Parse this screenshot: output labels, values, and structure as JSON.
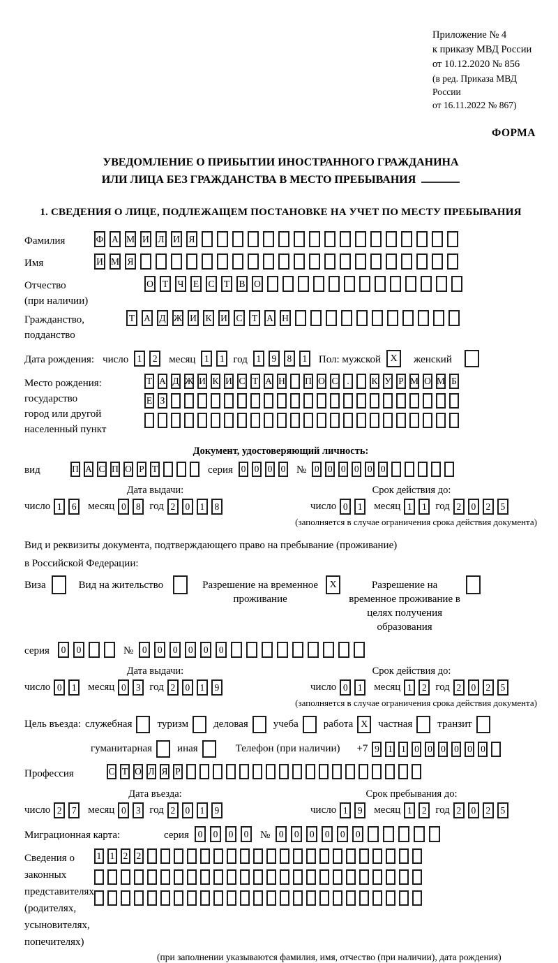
{
  "header": {
    "lines": [
      "Приложение № 4",
      "к приказу МВД России",
      "от 10.12.2020 № 856"
    ],
    "sub_lines": [
      "(в ред. Приказа МВД России",
      "от 16.11.2022 № 867)"
    ],
    "form_label": "ФОРМА"
  },
  "title": {
    "line1": "УВЕДОМЛЕНИЕ О ПРИБЫТИИ ИНОСТРАННОГО ГРАЖДАНИНА",
    "line2": "ИЛИ ЛИЦА БЕЗ ГРАЖДАНСТВА В МЕСТО ПРЕБЫВАНИЯ"
  },
  "section1_heading": "1. СВЕДЕНИЯ О ЛИЦЕ, ПОДЛЕЖАЩЕМ ПОСТАНОВКЕ НА УЧЕТ ПО МЕСТУ ПРЕБЫВАНИЯ",
  "date_words": {
    "day": "число",
    "month": "месяц",
    "year": "год"
  },
  "surname": {
    "label": "Фамилия",
    "value": "ФАМИЛИЯ",
    "cells": 24
  },
  "firstname": {
    "label": "Имя",
    "value": "ИМЯ",
    "cells": 24
  },
  "patronymic": {
    "label1": "Отчество",
    "label2": "(при наличии)",
    "value": "ОТЧЕСТВО",
    "cells": 21
  },
  "citizenship": {
    "label1": "Гражданство,",
    "label2": "подданство",
    "value": "ТАДЖИКИСТАН",
    "cells": 22
  },
  "birth_date": {
    "label": "Дата рождения:",
    "day": "12",
    "month": "11",
    "year": "1981",
    "sex_label": "Пол: мужской",
    "male": {
      "checked": true
    },
    "female_label": "женский",
    "female": {
      "checked": false
    }
  },
  "birth_place": {
    "labels": [
      "Место рождения:",
      "государство",
      "город или другой",
      "населенный пункт"
    ],
    "row1": {
      "value": "ТАДЖИКИСТАН ПОС. КУРМОМБ",
      "cells": 24
    },
    "row2": {
      "value": "ЕЗ",
      "cells": 24
    },
    "row3": {
      "value": "",
      "cells": 24
    }
  },
  "identity_doc": {
    "heading": "Документ, удостоверяющий личность:",
    "kind_label": "вид",
    "kind": {
      "value": "ПАСПОРТ",
      "cells": 10
    },
    "series_label": "серия",
    "series": {
      "value": "0000",
      "cells": 4
    },
    "number_label": "№",
    "number": {
      "value": "000000",
      "cells": 11
    },
    "issue": {
      "heading": "Дата выдачи:",
      "day": "16",
      "month": "08",
      "year": "2018"
    },
    "expiry": {
      "heading": "Срок действия до:",
      "day": "01",
      "month": "11",
      "year": "2025"
    },
    "note": "(заполняется в случае ограничения срока действия документа)"
  },
  "residence_doc": {
    "intro1": "Вид и реквизиты документа, подтверждающего право на пребывание (проживание)",
    "intro2": "в Российской Федерации:",
    "options": [
      {
        "label": "Виза",
        "checked": false
      },
      {
        "label": "Вид на жительство",
        "checked": false
      },
      {
        "label": "Разрешение на временное проживание",
        "checked": true
      },
      {
        "label": "Разрешение на временное проживание в целях получения образования",
        "checked": false
      }
    ],
    "series_label": "серия",
    "series": {
      "value": "00",
      "cells": 4
    },
    "number_label": "№",
    "number": {
      "value": "000000",
      "cells": 15
    },
    "issue": {
      "heading": "Дата выдачи:",
      "day": "01",
      "month": "03",
      "year": "2019"
    },
    "expiry": {
      "heading": "Срок действия до:",
      "day": "01",
      "month": "12",
      "year": "2025"
    },
    "note": "(заполняется в случае ограничения срока действия документа)"
  },
  "visit_purpose": {
    "label": "Цель въезда:",
    "options_row1": [
      {
        "label": "служебная",
        "checked": false
      },
      {
        "label": "туризм",
        "checked": false
      },
      {
        "label": "деловая",
        "checked": false
      },
      {
        "label": "учеба",
        "checked": false
      },
      {
        "label": "работа",
        "checked": true
      },
      {
        "label": "частная",
        "checked": false
      },
      {
        "label": "транзит",
        "checked": false
      }
    ],
    "options_row2": [
      {
        "label": "гуманитарная",
        "checked": false
      },
      {
        "label": "иная",
        "checked": false
      }
    ],
    "phone_label": "Телефон (при наличии)",
    "phone_prefix": "+7",
    "phone": {
      "value": "911000000",
      "cells": 10
    }
  },
  "profession": {
    "label": "Профессия",
    "value": "СТОЛЯР",
    "cells": 24
  },
  "entry_dates": {
    "issue": {
      "heading": "Дата въезда:",
      "day": "27",
      "month": "03",
      "year": "2019"
    },
    "expiry": {
      "heading": "Срок пребывания до:",
      "day": "19",
      "month": "12",
      "year": "2025"
    }
  },
  "migration_card": {
    "label": "Миграционная карта:",
    "series_label": "серия",
    "series": {
      "value": "0000",
      "cells": 4
    },
    "number_label": "№",
    "number": {
      "value": "000000",
      "cells": 11
    }
  },
  "legal_representatives": {
    "labels": [
      "Сведения о",
      "законных",
      "представителях",
      "(родителях,",
      "усыновителях,",
      "попечителях)"
    ],
    "row1": {
      "value": "1122",
      "cells": 25
    },
    "row2": {
      "value": "",
      "cells": 25
    },
    "row3": {
      "value": "",
      "cells": 25
    },
    "note": "(при заполнении указываются фамилия, имя, отчество (при наличии), дата рождения)"
  }
}
